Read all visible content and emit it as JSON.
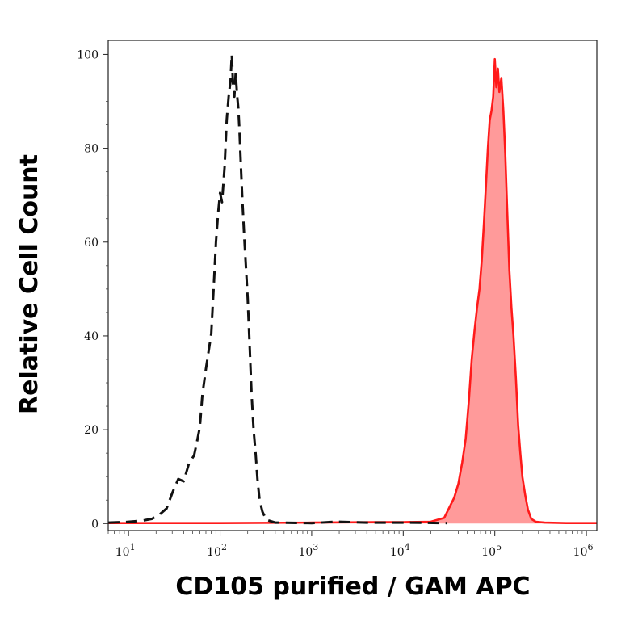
{
  "chart_data": {
    "type": "line",
    "title": "",
    "xlabel": "CD105 purified / GAM APC",
    "ylabel": "Relative Cell Count",
    "x_scale": "log",
    "xlim": [
      6,
      1300000
    ],
    "ylim": [
      -1.5,
      103
    ],
    "x_ticks": [
      {
        "value": 10,
        "base": "10",
        "exp": "1"
      },
      {
        "value": 100,
        "base": "10",
        "exp": "2"
      },
      {
        "value": 1000,
        "base": "10",
        "exp": "3"
      },
      {
        "value": 10000,
        "base": "10",
        "exp": "4"
      },
      {
        "value": 100000,
        "base": "10",
        "exp": "5"
      },
      {
        "value": 1000000,
        "base": "10",
        "exp": "6"
      }
    ],
    "y_ticks": [
      {
        "value": 0,
        "label": "0"
      },
      {
        "value": 20,
        "label": "20"
      },
      {
        "value": 40,
        "label": "40"
      },
      {
        "value": 60,
        "label": "60"
      },
      {
        "value": 80,
        "label": "80"
      },
      {
        "value": 100,
        "label": "100"
      }
    ],
    "grid": false,
    "legend": "none",
    "series": [
      {
        "style": "dashed",
        "color": "#111111",
        "fill": "none",
        "points": [
          [
            6,
            0.2
          ],
          [
            9,
            0.3
          ],
          [
            14,
            0.6
          ],
          [
            18,
            1.0
          ],
          [
            22,
            2.0
          ],
          [
            26,
            3.2
          ],
          [
            30,
            6.5
          ],
          [
            35,
            9.5
          ],
          [
            40,
            9.0
          ],
          [
            46,
            13.0
          ],
          [
            52,
            14.5
          ],
          [
            56,
            17.5
          ],
          [
            60,
            20.5
          ],
          [
            64,
            27.5
          ],
          [
            70,
            33.0
          ],
          [
            76,
            37.5
          ],
          [
            80,
            40.5
          ],
          [
            86,
            52.0
          ],
          [
            90,
            60.0
          ],
          [
            95,
            66.0
          ],
          [
            100,
            70.5
          ],
          [
            105,
            68.5
          ],
          [
            112,
            76.0
          ],
          [
            118,
            86.0
          ],
          [
            124,
            91.0
          ],
          [
            130,
            94.5
          ],
          [
            134,
            100.0
          ],
          [
            138,
            94.0
          ],
          [
            143,
            91.0
          ],
          [
            148,
            96.0
          ],
          [
            153,
            91.5
          ],
          [
            158,
            88.5
          ],
          [
            163,
            83.5
          ],
          [
            168,
            77.0
          ],
          [
            175,
            69.0
          ],
          [
            182,
            62.5
          ],
          [
            190,
            56.0
          ],
          [
            200,
            48.0
          ],
          [
            210,
            38.0
          ],
          [
            220,
            28.0
          ],
          [
            232,
            20.0
          ],
          [
            244,
            15.0
          ],
          [
            256,
            9.5
          ],
          [
            270,
            5.0
          ],
          [
            290,
            2.5
          ],
          [
            320,
            0.8
          ],
          [
            400,
            0.2
          ],
          [
            1000,
            0.1
          ],
          [
            1900,
            0.4
          ],
          [
            4000,
            0.2
          ],
          [
            12000,
            0.2
          ],
          [
            30000,
            0.1
          ]
        ]
      },
      {
        "style": "solid",
        "color": "#ff1a1a",
        "fill": "#ff9a9a",
        "points": [
          [
            6,
            0.1
          ],
          [
            100,
            0.1
          ],
          [
            1000,
            0.2
          ],
          [
            5000,
            0.3
          ],
          [
            10000,
            0.3
          ],
          [
            20000,
            0.4
          ],
          [
            28000,
            1.2
          ],
          [
            32000,
            3.5
          ],
          [
            36000,
            5.5
          ],
          [
            40000,
            8.5
          ],
          [
            44000,
            13.0
          ],
          [
            48000,
            18.0
          ],
          [
            52000,
            26.0
          ],
          [
            56000,
            35.0
          ],
          [
            60000,
            41.0
          ],
          [
            64000,
            46.0
          ],
          [
            68000,
            50.0
          ],
          [
            72000,
            56.0
          ],
          [
            76000,
            64.0
          ],
          [
            80000,
            72.0
          ],
          [
            84000,
            80.0
          ],
          [
            88000,
            86.0
          ],
          [
            92000,
            88.0
          ],
          [
            96000,
            91.0
          ],
          [
            100000,
            99.0
          ],
          [
            104000,
            93.0
          ],
          [
            108000,
            97.0
          ],
          [
            112000,
            92.0
          ],
          [
            118000,
            95.0
          ],
          [
            124000,
            88.0
          ],
          [
            130000,
            79.0
          ],
          [
            136000,
            68.0
          ],
          [
            144000,
            54.0
          ],
          [
            152000,
            46.0
          ],
          [
            160000,
            40.0
          ],
          [
            170000,
            31.0
          ],
          [
            180000,
            21.0
          ],
          [
            190000,
            15.0
          ],
          [
            200000,
            10.0
          ],
          [
            215000,
            6.0
          ],
          [
            230000,
            3.0
          ],
          [
            250000,
            1.0
          ],
          [
            280000,
            0.4
          ],
          [
            350000,
            0.2
          ],
          [
            600000,
            0.1
          ],
          [
            1300000,
            0.1
          ]
        ]
      }
    ]
  }
}
